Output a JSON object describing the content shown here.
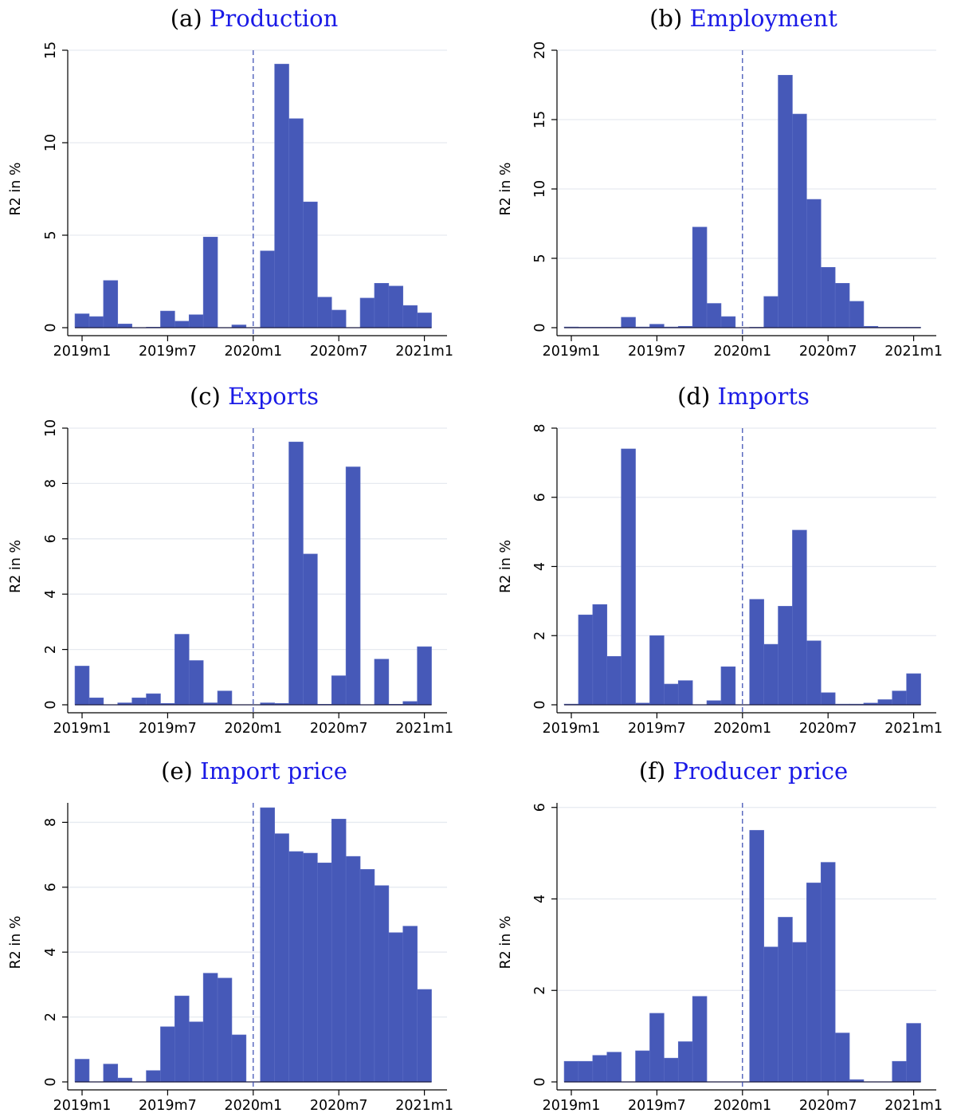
{
  "figure": {
    "colors": {
      "bar": "#4659B8",
      "bar_edge": "#5B6DC4",
      "title_name": "#1A1AE6",
      "grid": "#E6EAF0",
      "dashed_line": "#3346B0"
    }
  },
  "chart_data": [
    {
      "type": "bar",
      "panel_label": "(a)",
      "title": "Production",
      "ylabel": "R2 in %",
      "ylim": [
        0,
        15
      ],
      "yticks": [
        0,
        5,
        10,
        15
      ],
      "xticks": [
        "2019m1",
        "2019m7",
        "2020m1",
        "2020m7",
        "2021m1"
      ],
      "xtick_months": [
        0,
        6,
        12,
        18,
        24
      ],
      "event_line_month": 12,
      "x_months": [
        "2019m1",
        "2019m2",
        "2019m3",
        "2019m4",
        "2019m5",
        "2019m6",
        "2019m7",
        "2019m8",
        "2019m9",
        "2019m10",
        "2019m11",
        "2019m12",
        "2020m1",
        "2020m2",
        "2020m3",
        "2020m4",
        "2020m5",
        "2020m6",
        "2020m7",
        "2020m8",
        "2020m9",
        "2020m10",
        "2020m11",
        "2020m12",
        "2021m1"
      ],
      "values": [
        0.75,
        0.6,
        2.55,
        0.2,
        0.0,
        0.03,
        0.9,
        0.35,
        0.7,
        4.9,
        0.0,
        0.15,
        0.0,
        4.15,
        14.25,
        11.3,
        6.8,
        1.65,
        0.95,
        0.0,
        1.6,
        2.4,
        2.25,
        1.2,
        0.8
      ]
    },
    {
      "type": "bar",
      "panel_label": "(b)",
      "title": "Employment",
      "ylabel": "R2 in %",
      "ylim": [
        0,
        20
      ],
      "yticks": [
        0,
        5,
        10,
        15,
        20
      ],
      "xticks": [
        "2019m1",
        "2019m7",
        "2020m1",
        "2020m7",
        "2021m1"
      ],
      "xtick_months": [
        0,
        6,
        12,
        18,
        24
      ],
      "event_line_month": 12,
      "x_months": [
        "2019m1",
        "2019m2",
        "2019m3",
        "2019m4",
        "2019m5",
        "2019m6",
        "2019m7",
        "2019m8",
        "2019m9",
        "2019m10",
        "2019m11",
        "2019m12",
        "2020m1",
        "2020m2",
        "2020m3",
        "2020m4",
        "2020m5",
        "2020m6",
        "2020m7",
        "2020m8",
        "2020m9",
        "2020m10",
        "2020m11",
        "2020m12",
        "2021m1"
      ],
      "values": [
        0.05,
        0.02,
        0.02,
        0.02,
        0.75,
        0.05,
        0.25,
        0.05,
        0.1,
        7.25,
        1.75,
        0.8,
        0.0,
        0.02,
        2.25,
        18.2,
        15.4,
        9.25,
        4.35,
        3.2,
        1.9,
        0.1,
        0.02,
        0.02,
        0.02
      ]
    },
    {
      "type": "bar",
      "panel_label": "(c)",
      "title": "Exports",
      "ylabel": "R2 in %",
      "ylim": [
        0,
        10
      ],
      "yticks": [
        0,
        2,
        4,
        6,
        8,
        10
      ],
      "xticks": [
        "2019m1",
        "2019m7",
        "2020m1",
        "2020m7",
        "2021m1"
      ],
      "xtick_months": [
        0,
        6,
        12,
        18,
        24
      ],
      "event_line_month": 12,
      "x_months": [
        "2019m1",
        "2019m2",
        "2019m3",
        "2019m4",
        "2019m5",
        "2019m6",
        "2019m7",
        "2019m8",
        "2019m9",
        "2019m10",
        "2019m11",
        "2019m12",
        "2020m1",
        "2020m2",
        "2020m3",
        "2020m4",
        "2020m5",
        "2020m6",
        "2020m7",
        "2020m8",
        "2020m9",
        "2020m10",
        "2020m11",
        "2020m12",
        "2021m1"
      ],
      "values": [
        1.4,
        0.25,
        0.0,
        0.07,
        0.25,
        0.4,
        0.05,
        2.55,
        1.6,
        0.07,
        0.5,
        0.0,
        0.0,
        0.07,
        0.05,
        9.5,
        5.45,
        0.02,
        1.05,
        8.6,
        0.0,
        1.65,
        0.02,
        0.12,
        2.1
      ]
    },
    {
      "type": "bar",
      "panel_label": "(d)",
      "title": "Imports",
      "ylabel": "R2 in %",
      "ylim": [
        0,
        8
      ],
      "yticks": [
        0,
        2,
        4,
        6,
        8
      ],
      "xticks": [
        "2019m1",
        "2019m7",
        "2020m1",
        "2020m7",
        "2021m1"
      ],
      "xtick_months": [
        0,
        6,
        12,
        18,
        24
      ],
      "event_line_month": 12,
      "x_months": [
        "2019m1",
        "2019m2",
        "2019m3",
        "2019m4",
        "2019m5",
        "2019m6",
        "2019m7",
        "2019m8",
        "2019m9",
        "2019m10",
        "2019m11",
        "2019m12",
        "2020m1",
        "2020m2",
        "2020m3",
        "2020m4",
        "2020m5",
        "2020m6",
        "2020m7",
        "2020m8",
        "2020m9",
        "2020m10",
        "2020m11",
        "2020m12",
        "2021m1"
      ],
      "values": [
        0.02,
        2.6,
        2.9,
        1.4,
        7.4,
        0.05,
        2.0,
        0.6,
        0.7,
        0.0,
        0.12,
        1.1,
        0.0,
        3.05,
        1.75,
        2.85,
        5.05,
        1.85,
        0.35,
        0.02,
        0.02,
        0.05,
        0.15,
        0.4,
        0.9
      ]
    },
    {
      "type": "bar",
      "panel_label": "(e)",
      "title": "Import price",
      "ylabel": "R2 in %",
      "ylim": [
        0,
        8.6
      ],
      "yticks": [
        0,
        2,
        4,
        6,
        8
      ],
      "xticks": [
        "2019m1",
        "2019m7",
        "2020m1",
        "2020m7",
        "2021m1"
      ],
      "xtick_months": [
        0,
        6,
        12,
        18,
        24
      ],
      "event_line_month": 12,
      "x_months": [
        "2019m1",
        "2019m2",
        "2019m3",
        "2019m4",
        "2019m5",
        "2019m6",
        "2019m7",
        "2019m8",
        "2019m9",
        "2019m10",
        "2019m11",
        "2019m12",
        "2020m1",
        "2020m2",
        "2020m3",
        "2020m4",
        "2020m5",
        "2020m6",
        "2020m7",
        "2020m8",
        "2020m9",
        "2020m10",
        "2020m11",
        "2020m12",
        "2021m1"
      ],
      "values": [
        0.7,
        0.0,
        0.55,
        0.12,
        0.0,
        0.35,
        1.7,
        2.65,
        1.85,
        3.35,
        3.2,
        1.45,
        0.0,
        8.45,
        7.65,
        7.1,
        7.05,
        6.75,
        8.1,
        6.95,
        6.55,
        6.05,
        4.6,
        4.8,
        2.85
      ]
    },
    {
      "type": "bar",
      "panel_label": "(f)",
      "title": "Producer price",
      "ylabel": "R2 in %",
      "ylim": [
        0,
        6.1
      ],
      "yticks": [
        0,
        2,
        4,
        6
      ],
      "xticks": [
        "2019m1",
        "2019m7",
        "2020m1",
        "2020m7",
        "2021m1"
      ],
      "xtick_months": [
        0,
        6,
        12,
        18,
        24
      ],
      "event_line_month": 12,
      "x_months": [
        "2019m1",
        "2019m2",
        "2019m3",
        "2019m4",
        "2019m5",
        "2019m6",
        "2019m7",
        "2019m8",
        "2019m9",
        "2019m10",
        "2019m11",
        "2019m12",
        "2020m1",
        "2020m2",
        "2020m3",
        "2020m4",
        "2020m5",
        "2020m6",
        "2020m7",
        "2020m8",
        "2020m9",
        "2020m10",
        "2020m11",
        "2020m12",
        "2021m1"
      ],
      "values": [
        0.45,
        0.45,
        0.58,
        0.65,
        0.0,
        0.68,
        1.5,
        0.52,
        0.88,
        1.87,
        0.0,
        0.0,
        0.0,
        5.5,
        2.95,
        3.6,
        3.05,
        4.35,
        4.8,
        1.07,
        0.05,
        0.0,
        0.0,
        0.45,
        1.28
      ]
    }
  ]
}
